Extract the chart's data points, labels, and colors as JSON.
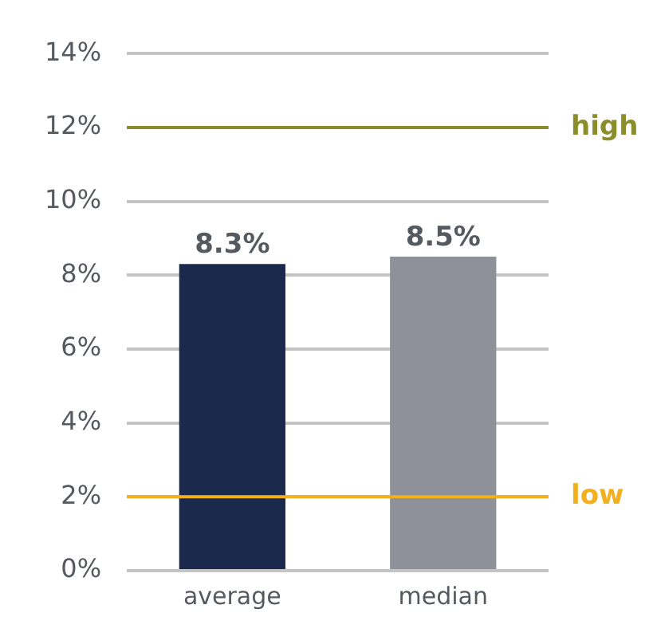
{
  "chart_data": {
    "type": "bar",
    "categories": [
      "average",
      "median"
    ],
    "values": [
      8.3,
      8.5
    ],
    "colors": [
      "#1b2a4c",
      "#8e9199"
    ],
    "value_labels": [
      "8.3%",
      "8.5%"
    ],
    "ylim": [
      0,
      14
    ],
    "yticks": [
      {
        "value": 0,
        "label": "0%"
      },
      {
        "value": 2,
        "label": "2%"
      },
      {
        "value": 4,
        "label": "4%"
      },
      {
        "value": 6,
        "label": "6%"
      },
      {
        "value": 8,
        "label": "8%"
      },
      {
        "value": 10,
        "label": "10%"
      },
      {
        "value": 12,
        "label": "12%"
      },
      {
        "value": 14,
        "label": "14%"
      }
    ],
    "grid": "y",
    "legend": false,
    "ref_lines": [
      {
        "axis": "y",
        "value": 12,
        "label": "high",
        "color": "#8a8d2b"
      },
      {
        "axis": "y",
        "value": 2,
        "label": "low",
        "color": "#f2b01e"
      }
    ]
  }
}
